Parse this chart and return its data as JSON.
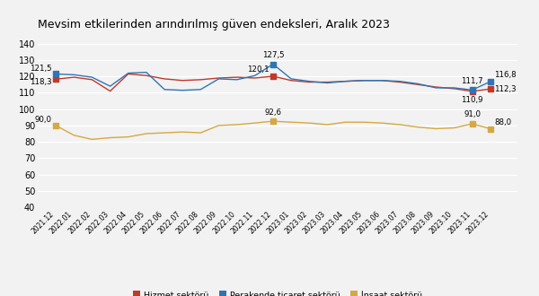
{
  "title": "Mevsim etkilerinden arındırılmış güven endeksleri, Aralık 2023",
  "x_labels": [
    "2021.12",
    "2022.01",
    "2022.02",
    "2022.03",
    "2022.04",
    "2022.05",
    "2022.06",
    "2022.07",
    "2022.08",
    "2022.09",
    "2022.10",
    "2022.11",
    "2022.12",
    "2023.01",
    "2023.02",
    "2023.03",
    "2023.04",
    "2023.05",
    "2023.06",
    "2023.07",
    "2023.08",
    "2023.09",
    "2023.10",
    "2023.11",
    "2023.12"
  ],
  "hizmet": [
    118.3,
    119.5,
    118.0,
    111.0,
    121.5,
    120.5,
    118.5,
    117.5,
    118.0,
    119.0,
    119.5,
    119.0,
    120.1,
    117.5,
    116.5,
    116.5,
    117.0,
    117.5,
    117.5,
    116.5,
    115.0,
    113.5,
    112.5,
    110.9,
    112.3
  ],
  "perakende": [
    121.5,
    121.0,
    119.5,
    114.0,
    122.0,
    122.5,
    112.0,
    111.5,
    112.0,
    118.5,
    118.0,
    120.5,
    127.5,
    118.5,
    117.0,
    116.0,
    117.0,
    117.5,
    117.5,
    117.0,
    115.5,
    113.0,
    113.0,
    111.7,
    116.8
  ],
  "insaat": [
    90.0,
    84.0,
    81.5,
    82.5,
    83.0,
    85.0,
    85.5,
    86.0,
    85.5,
    90.0,
    90.5,
    91.5,
    92.6,
    92.0,
    91.5,
    90.5,
    92.0,
    92.0,
    91.5,
    90.5,
    89.0,
    88.0,
    88.5,
    91.0,
    88.0
  ],
  "hizmet_color": "#c0392b",
  "perakende_color": "#2e75b6",
  "insaat_color": "#d4a843",
  "hizmet_label": "Hizmet sektörü",
  "perakende_label": "Perakende ticaret sektörü",
  "insaat_label": "İnşaat sektörü",
  "ylim": [
    40,
    145
  ],
  "yticks": [
    40,
    50,
    60,
    70,
    80,
    90,
    100,
    110,
    120,
    130,
    140
  ],
  "bg_color": "#f2f2f2",
  "marker_indices": [
    0,
    12,
    23,
    24
  ],
  "ann_fontsize": 6.2,
  "title_fontsize": 9
}
